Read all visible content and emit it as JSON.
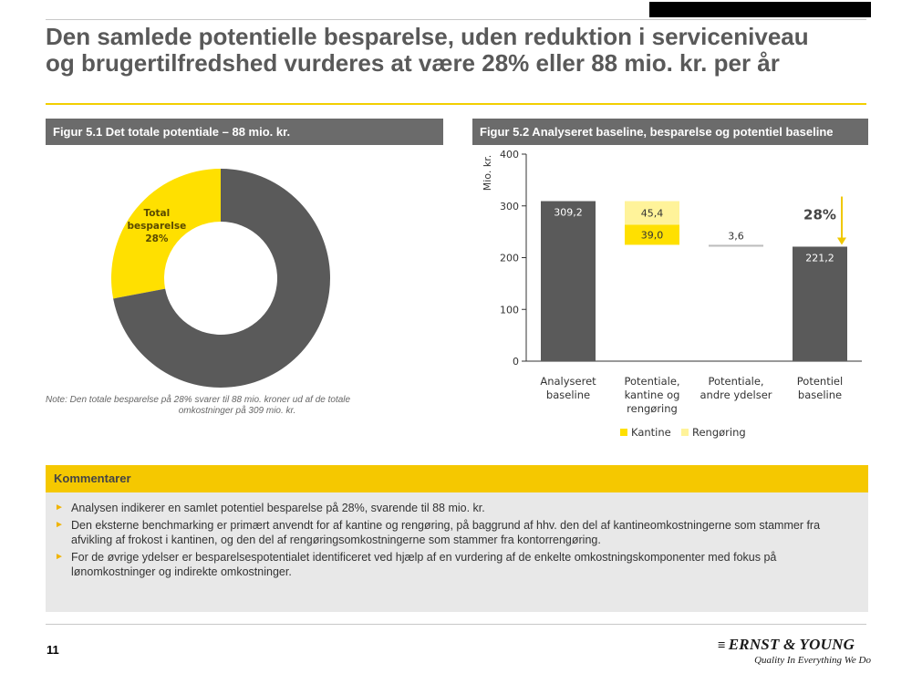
{
  "header": {
    "title_line1": "Den samlede potentielle besparelse, uden reduktion i serviceniveau",
    "title_line2": "og brugertilfredshed vurderes at være 28% eller 88 mio. kr. per år"
  },
  "figure1": {
    "heading": "Figur 5.1 Det totale potentiale – 88 mio. kr.",
    "note_line1": "Note:  Den totale besparelse på 28% svarer til 88 mio. kroner  ud af de totale",
    "note_line2": "omkostninger  på 309 mio. kr."
  },
  "figure2": {
    "heading": "Figur 5.2 Analyseret baseline, besparelse og potentiel baseline"
  },
  "chart_data": [
    {
      "type": "pie",
      "style": "donut",
      "slices": [
        {
          "label_lines": [
            "Total",
            "besparelse",
            "28%"
          ],
          "value": 28,
          "color": "#ffe000"
        },
        {
          "label_lines": [],
          "value": 72,
          "color": "#5a5a5a"
        }
      ]
    },
    {
      "type": "bar",
      "style": "waterfall",
      "ylabel": "Mio. kr.",
      "ylim": [
        0,
        400
      ],
      "yticks": [
        0,
        100,
        200,
        300,
        400
      ],
      "grid": false,
      "legend_position": "bottom",
      "categories": [
        [
          "Analyseret",
          "baseline"
        ],
        [
          "Potentiale,",
          "kantine og",
          "rengøring"
        ],
        [
          "Potentiale,",
          "andre ydelser"
        ],
        [
          "Potentiel",
          "baseline"
        ]
      ],
      "bars": [
        {
          "category_index": 0,
          "kind": "total",
          "value": 309.2,
          "label": "309,2",
          "color": "#5a5a5a"
        },
        {
          "category_index": 1,
          "kind": "step",
          "series": "Kantine",
          "value": 39.0,
          "label": "39,0",
          "color": "#ffe000"
        },
        {
          "category_index": 1,
          "kind": "step",
          "series": "Rengøring",
          "value": 45.4,
          "label": "45,4",
          "color": "#fff39a"
        },
        {
          "category_index": 2,
          "kind": "step",
          "series": "andre ydelser",
          "value": 3.6,
          "label": "3,6",
          "color": "#bdbdbd"
        },
        {
          "category_index": 3,
          "kind": "total",
          "value": 221.2,
          "label": "221,2",
          "color": "#5a5a5a"
        }
      ],
      "annotation": {
        "text": "28%",
        "color": "#f0c800"
      },
      "legend": [
        {
          "name": "Kantine",
          "color": "#ffe000"
        },
        {
          "name": "Rengøring",
          "color": "#fff39a"
        }
      ]
    }
  ],
  "comments": {
    "heading": "Kommentarer",
    "bullet_symbol": "►",
    "items": [
      "Analysen indikerer en samlet potentiel besparelse på 28%, svarende til 88 mio. kr.",
      "Den eksterne benchmarking er primært anvendt for af kantine og rengøring, på baggrund af hhv. den del af kantineomkostningerne som stammer fra afvikling af frokost i kantinen, og den del af rengøringsomkostningerne som stammer fra kontorrengøring.",
      "For de øvrige ydelser er besparelsespotentialet identificeret ved hjælp af en vurdering af de enkelte omkostningskomponenter med fokus på lønomkostninger og indirekte omkostninger."
    ]
  },
  "footer": {
    "page_number": "11",
    "logo_mark": "≡",
    "logo_text": "ERNST & YOUNG",
    "tagline": "Quality In Everything We Do"
  }
}
